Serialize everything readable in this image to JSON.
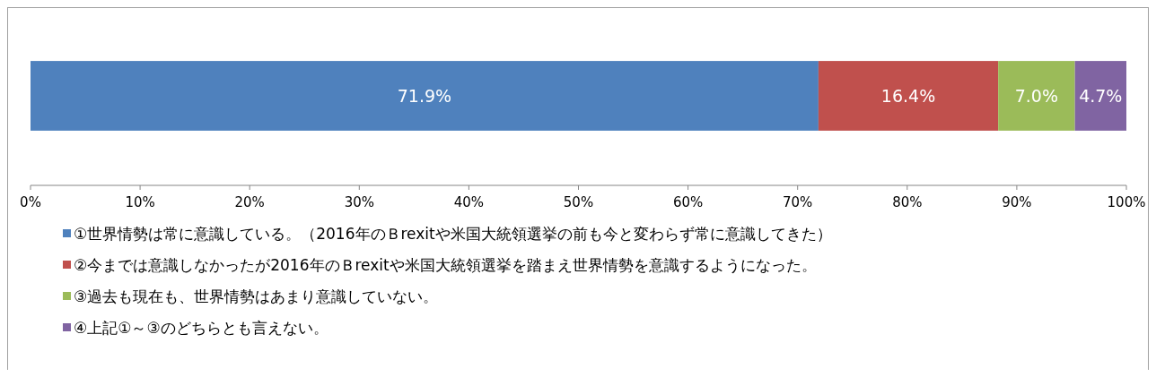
{
  "chart_data": {
    "type": "bar",
    "orientation": "horizontal",
    "stacked": true,
    "categories": [
      null
    ],
    "series": [
      {
        "name": "①世界情勢は常に意識している。（2016年のＢrexitや米国大統領選挙の前も今と変わらず常に意識してきた）",
        "color": "#4f81bd",
        "values": [
          71.9
        ],
        "value_labels": [
          "71.9%"
        ]
      },
      {
        "name": "②今までは意識しなかったが2016年のＢrexitや米国大統領選挙を踏まえ世界情勢を意識するようになった。",
        "color": "#c0504d",
        "values": [
          16.4
        ],
        "value_labels": [
          "16.4%"
        ]
      },
      {
        "name": "③過去も現在も、世界情勢はあまり意識していない。",
        "color": "#9bbb59",
        "values": [
          7.0
        ],
        "value_labels": [
          "7.0%"
        ]
      },
      {
        "name": "④上記①～③のどちらとも言えない。",
        "color": "#8064a2",
        "values": [
          4.7
        ],
        "value_labels": [
          "4.7%"
        ]
      }
    ],
    "xlim": [
      0,
      100
    ],
    "xticks": [
      {
        "value": 0,
        "label": "0%"
      },
      {
        "value": 10,
        "label": "10%"
      },
      {
        "value": 20,
        "label": "20%"
      },
      {
        "value": 30,
        "label": "30%"
      },
      {
        "value": 40,
        "label": "40%"
      },
      {
        "value": 50,
        "label": "50%"
      },
      {
        "value": 60,
        "label": "60%"
      },
      {
        "value": 70,
        "label": "70%"
      },
      {
        "value": 80,
        "label": "80%"
      },
      {
        "value": 90,
        "label": "90%"
      },
      {
        "value": 100,
        "label": "100%"
      }
    ],
    "grid": false,
    "legend": "bottom"
  }
}
